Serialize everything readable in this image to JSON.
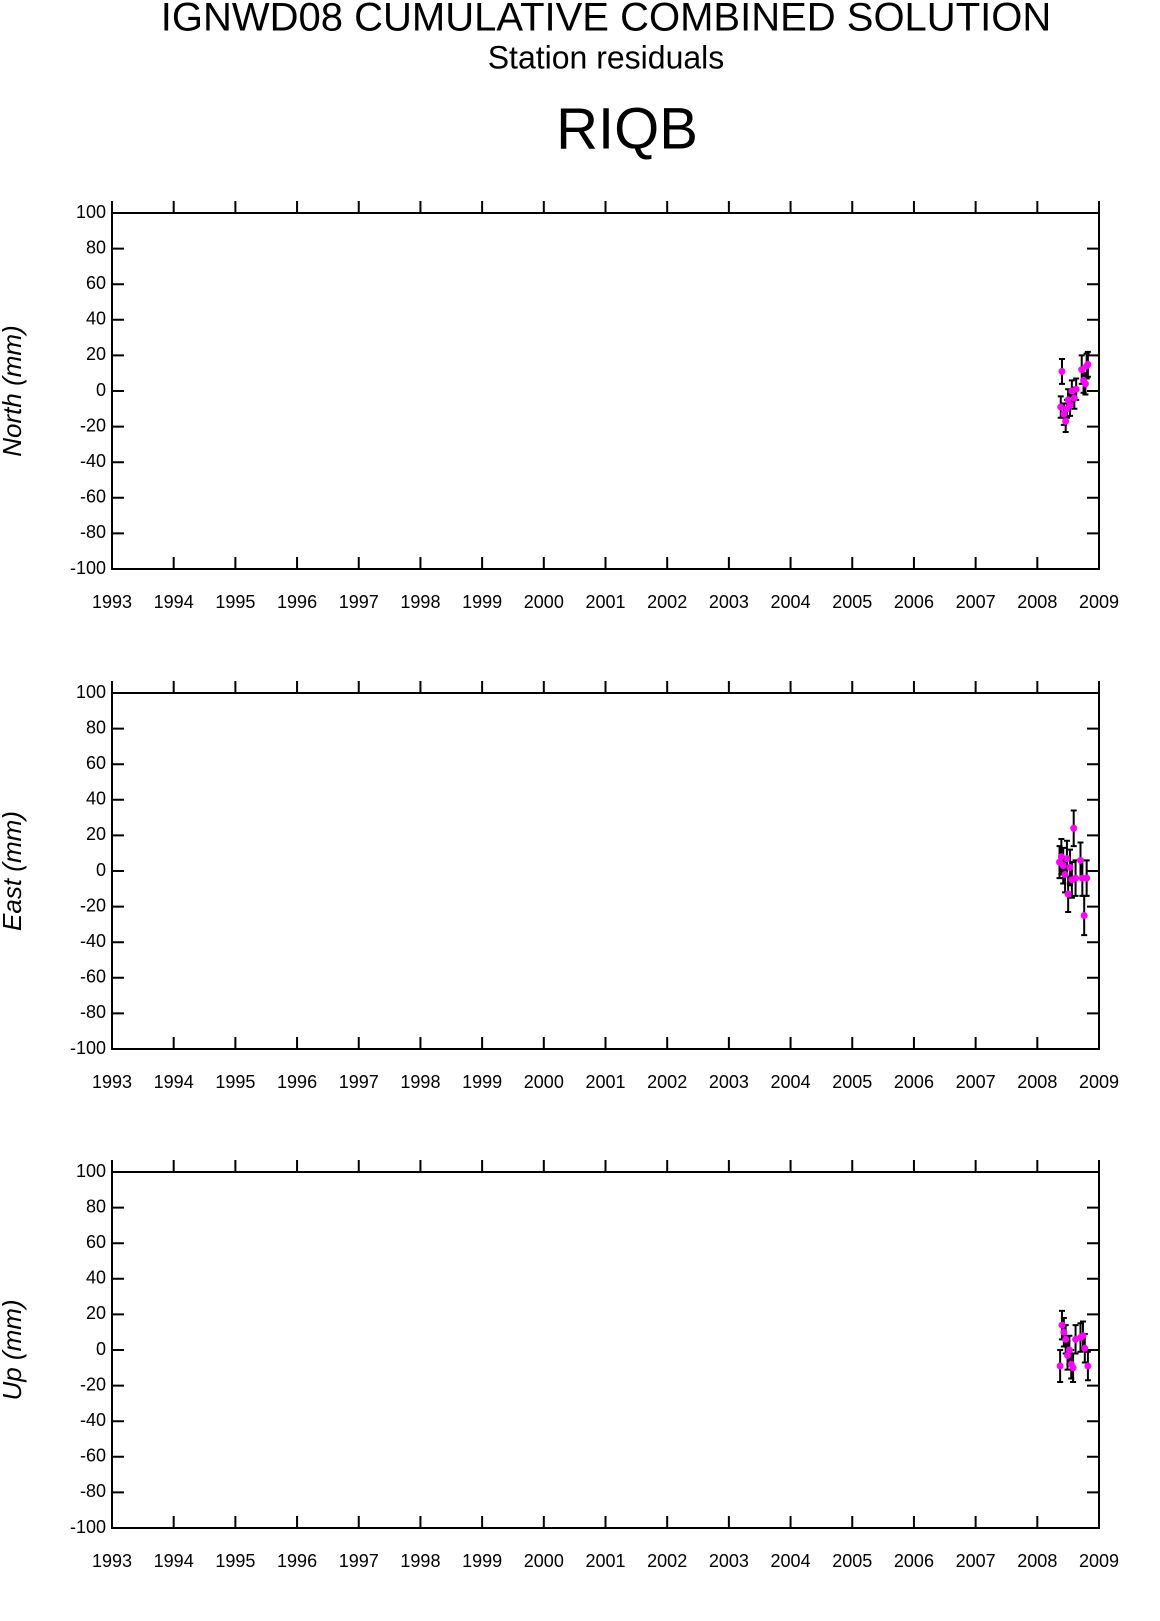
{
  "title": "IGNWD08 CUMULATIVE COMBINED SOLUTION",
  "subtitle": "Station residuals",
  "station": "RIQB",
  "chart_data": [
    {
      "type": "scatter",
      "ylabel": "North (mm)",
      "color": "#ff00ff",
      "x": [
        2008.38,
        2008.4,
        2008.43,
        2008.46,
        2008.48,
        2008.5,
        2008.53,
        2008.56,
        2008.6,
        2008.63,
        2008.72,
        2008.75,
        2008.78,
        2008.8,
        2008.82
      ],
      "values": [
        -9,
        11,
        -13,
        -17,
        -10,
        -5,
        -8,
        0,
        -4,
        1,
        12,
        6,
        4,
        14,
        15
      ],
      "errors": [
        6,
        7,
        6,
        6,
        5,
        6,
        6,
        6,
        6,
        6,
        8,
        7,
        6,
        7,
        7
      ],
      "xlim": [
        1993,
        2009
      ],
      "xticks": [
        1993,
        1994,
        1995,
        1996,
        1997,
        1998,
        1999,
        2000,
        2001,
        2002,
        2003,
        2004,
        2005,
        2006,
        2007,
        2008,
        2009
      ],
      "ylim": [
        -100,
        100
      ],
      "yticks": [
        -100,
        -80,
        -60,
        -40,
        -20,
        0,
        20,
        40,
        60,
        80,
        100
      ]
    },
    {
      "type": "scatter",
      "ylabel": "East (mm)",
      "color": "#ff00ff",
      "x": [
        2008.36,
        2008.39,
        2008.42,
        2008.45,
        2008.48,
        2008.5,
        2008.53,
        2008.56,
        2008.59,
        2008.62,
        2008.7,
        2008.73,
        2008.76,
        2008.8
      ],
      "values": [
        5,
        8,
        3,
        -2,
        7,
        -13,
        2,
        -5,
        24,
        -4,
        6,
        -4,
        -25,
        -4
      ],
      "errors": [
        9,
        10,
        10,
        10,
        10,
        10,
        10,
        10,
        10,
        10,
        10,
        10,
        11,
        10
      ],
      "xlim": [
        1993,
        2009
      ],
      "xticks": [
        1993,
        1994,
        1995,
        1996,
        1997,
        1998,
        1999,
        2000,
        2001,
        2002,
        2003,
        2004,
        2005,
        2006,
        2007,
        2008,
        2009
      ],
      "ylim": [
        -100,
        100
      ],
      "yticks": [
        -100,
        -80,
        -60,
        -40,
        -20,
        0,
        20,
        40,
        60,
        80,
        100
      ]
    },
    {
      "type": "scatter",
      "ylabel": "Up (mm)",
      "color": "#ff00ff",
      "x": [
        2008.37,
        2008.4,
        2008.43,
        2008.46,
        2008.49,
        2008.52,
        2008.55,
        2008.58,
        2008.62,
        2008.7,
        2008.74,
        2008.77,
        2008.82
      ],
      "values": [
        -9,
        14,
        10,
        6,
        -3,
        0,
        -8,
        -10,
        6,
        7,
        8,
        1,
        -9
      ],
      "errors": [
        9,
        8,
        8,
        8,
        8,
        8,
        8,
        8,
        8,
        8,
        8,
        8,
        8
      ],
      "xlim": [
        1993,
        2009
      ],
      "xticks": [
        1993,
        1994,
        1995,
        1996,
        1997,
        1998,
        1999,
        2000,
        2001,
        2002,
        2003,
        2004,
        2005,
        2006,
        2007,
        2008,
        2009
      ],
      "ylim": [
        -100,
        100
      ],
      "yticks": [
        -100,
        -80,
        -60,
        -40,
        -20,
        0,
        20,
        40,
        60,
        80,
        100
      ]
    }
  ]
}
